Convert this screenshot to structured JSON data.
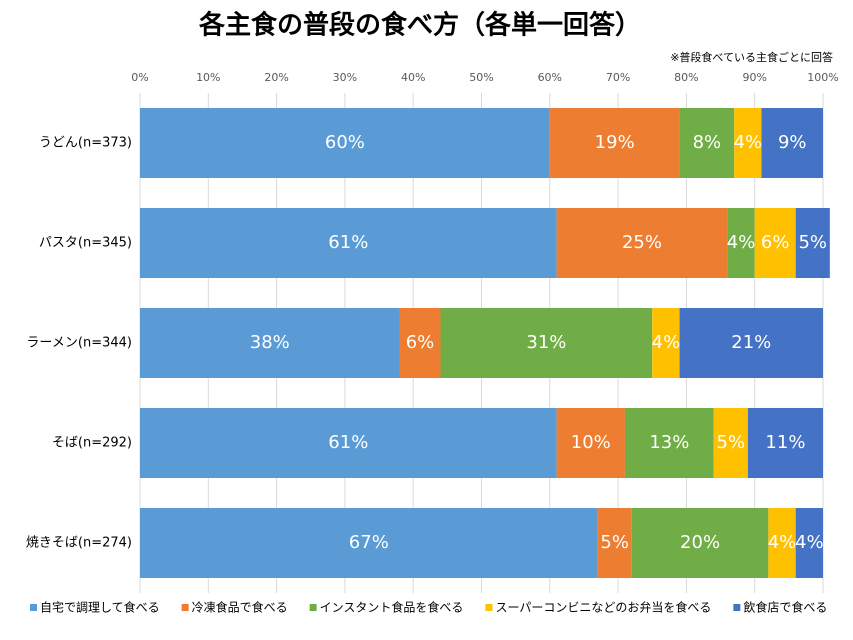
{
  "chart_data": {
    "type": "stacked-bar-horizontal",
    "title": "各主食の普段の食べ方（各単一回答）",
    "note": "※普段食べている主食ごとに回答",
    "categories": [
      "うどん(n=373)",
      "パスタ(n=345)",
      "ラーメン(n=344)",
      "そば(n=292)",
      "焼きそば(n=274)"
    ],
    "series": [
      {
        "name": "自宅で調理して食べる",
        "color": "#5b9bd5",
        "values": [
          60,
          61,
          38,
          61,
          67
        ],
        "value_labels": [
          "60%",
          "61%",
          "38%",
          "61%",
          "67%"
        ]
      },
      {
        "name": "冷凍食品で食べる",
        "color": "#ed7d31",
        "values": [
          19,
          25,
          6,
          10,
          5
        ],
        "value_labels": [
          "19%",
          "25%",
          "6%",
          "10%",
          "5%"
        ]
      },
      {
        "name": "インスタント食品を食べる",
        "color": "#70ad47",
        "values": [
          8,
          4,
          31,
          13,
          20
        ],
        "value_labels": [
          "8%",
          "4%",
          "31%",
          "13%",
          "20%"
        ]
      },
      {
        "name": "スーパーコンビニなどのお弁当を食べる",
        "color": "#ffc000",
        "values": [
          4,
          6,
          4,
          5,
          4
        ],
        "value_labels": [
          "4%",
          "6%",
          "4%",
          "5%",
          "4%"
        ]
      },
      {
        "name": "飲食店で食べる",
        "color": "#4472c4",
        "values": [
          9,
          5,
          21,
          11,
          4
        ],
        "value_labels": [
          "9%",
          "5%",
          "21%",
          "11%",
          "4%"
        ]
      }
    ],
    "xlim": [
      0,
      100
    ],
    "xticks": [
      {
        "value": 0,
        "label": "0%"
      },
      {
        "value": 10,
        "label": "10%"
      },
      {
        "value": 20,
        "label": "20%"
      },
      {
        "value": 30,
        "label": "30%"
      },
      {
        "value": 40,
        "label": "40%"
      },
      {
        "value": 50,
        "label": "50%"
      },
      {
        "value": 60,
        "label": "60%"
      },
      {
        "value": 70,
        "label": "70%"
      },
      {
        "value": 80,
        "label": "80%"
      },
      {
        "value": 90,
        "label": "90%"
      },
      {
        "value": 100,
        "label": "100%"
      }
    ],
    "grid": true,
    "legend": "bottom"
  }
}
